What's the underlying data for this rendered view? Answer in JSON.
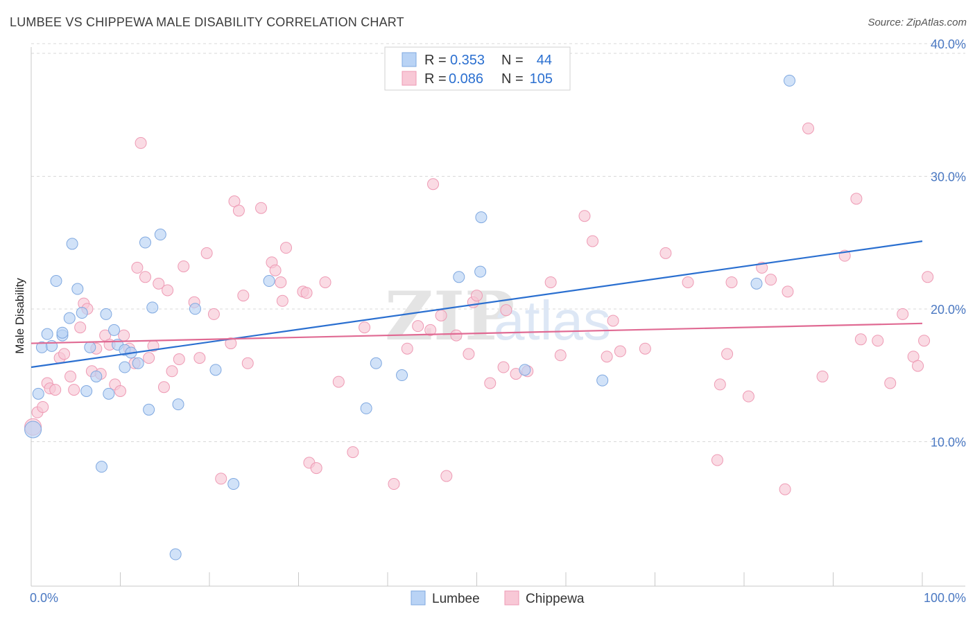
{
  "title": "LUMBEE VS CHIPPEWA MALE DISABILITY CORRELATION CHART",
  "source": "Source: ZipAtlas.com",
  "watermark": {
    "zip": "ZIP",
    "atlas": "atlas"
  },
  "colors": {
    "lumbee_fill": "#b9d3f5",
    "lumbee_stroke": "#7fa8e0",
    "lumbee_line": "#2a6fd0",
    "chippewa_fill": "#f8c8d6",
    "chippewa_stroke": "#ee9ab4",
    "chippewa_line": "#e06a93",
    "axis_label": "#4a78c2",
    "grid": "#d9d9d9"
  },
  "legend": {
    "rows": [
      {
        "r_label": "R =",
        "r_value": "0.353",
        "n_label": "N =",
        "n_value": "44"
      },
      {
        "r_label": "R =",
        "r_value": "0.086",
        "n_label": "N =",
        "n_value": "105"
      }
    ]
  },
  "bottom_legend": [
    "Lumbee",
    "Chippewa"
  ],
  "chart_data": {
    "type": "scatter",
    "title": "LUMBEE VS CHIPPEWA MALE DISABILITY CORRELATION CHART",
    "xlabel": "",
    "ylabel": "Male Disability",
    "xlim": [
      0,
      100
    ],
    "ylim": [
      0,
      40
    ],
    "x_tick_labels": [
      "0.0%",
      "100.0%"
    ],
    "y_ticks": [
      10,
      20,
      30,
      40
    ],
    "y_tick_labels": [
      "10.0%",
      "20.0%",
      "30.0%",
      "40.0%"
    ],
    "grid": "horizontal dashed",
    "legend_placement": "top-center",
    "series": [
      {
        "name": "Lumbee",
        "r": 0.353,
        "n": 44,
        "trend": {
          "x": [
            0,
            100
          ],
          "y": [
            16.5,
            26.0
          ]
        },
        "points": [
          [
            0.2,
            11.8
          ],
          [
            0.8,
            14.5
          ],
          [
            1.2,
            18.0
          ],
          [
            1.8,
            19.0
          ],
          [
            2.3,
            18.1
          ],
          [
            2.8,
            23.0
          ],
          [
            3.5,
            18.9
          ],
          [
            3.5,
            19.1
          ],
          [
            4.3,
            20.2
          ],
          [
            4.6,
            25.8
          ],
          [
            5.2,
            22.4
          ],
          [
            5.7,
            20.6
          ],
          [
            6.2,
            14.7
          ],
          [
            6.6,
            18.0
          ],
          [
            7.3,
            15.8
          ],
          [
            7.9,
            9.0
          ],
          [
            8.4,
            20.5
          ],
          [
            8.7,
            14.5
          ],
          [
            9.3,
            19.3
          ],
          [
            9.7,
            18.2
          ],
          [
            10.5,
            16.5
          ],
          [
            10.5,
            17.8
          ],
          [
            11.2,
            17.6
          ],
          [
            12.0,
            16.8
          ],
          [
            12.8,
            25.9
          ],
          [
            13.2,
            13.3
          ],
          [
            13.6,
            21.0
          ],
          [
            14.5,
            26.5
          ],
          [
            16.2,
            2.4
          ],
          [
            16.5,
            13.7
          ],
          [
            18.4,
            20.9
          ],
          [
            20.7,
            16.3
          ],
          [
            22.7,
            7.7
          ],
          [
            26.7,
            23.0
          ],
          [
            37.6,
            13.4
          ],
          [
            38.7,
            16.8
          ],
          [
            41.6,
            15.9
          ],
          [
            48.0,
            23.3
          ],
          [
            50.4,
            23.7
          ],
          [
            50.5,
            27.8
          ],
          [
            55.4,
            16.3
          ],
          [
            64.1,
            15.5
          ],
          [
            81.4,
            22.8
          ],
          [
            85.1,
            38.1
          ]
        ]
      },
      {
        "name": "Chippewa",
        "r": 0.086,
        "n": 105,
        "trend": {
          "x": [
            0,
            100
          ],
          "y": [
            18.3,
            19.8
          ]
        },
        "points": [
          [
            0.2,
            12.0
          ],
          [
            0.7,
            13.1
          ],
          [
            1.3,
            13.5
          ],
          [
            1.8,
            15.3
          ],
          [
            2.1,
            14.9
          ],
          [
            2.7,
            14.8
          ],
          [
            3.2,
            17.2
          ],
          [
            3.7,
            17.5
          ],
          [
            4.4,
            15.8
          ],
          [
            4.8,
            14.8
          ],
          [
            5.5,
            19.5
          ],
          [
            5.9,
            21.3
          ],
          [
            6.3,
            20.9
          ],
          [
            6.8,
            16.2
          ],
          [
            7.3,
            17.9
          ],
          [
            7.8,
            16.0
          ],
          [
            8.3,
            18.9
          ],
          [
            8.8,
            18.2
          ],
          [
            9.4,
            15.2
          ],
          [
            10.0,
            14.7
          ],
          [
            10.4,
            18.9
          ],
          [
            11.0,
            17.9
          ],
          [
            11.6,
            16.8
          ],
          [
            11.9,
            24.0
          ],
          [
            12.3,
            33.4
          ],
          [
            12.8,
            23.3
          ],
          [
            13.2,
            17.2
          ],
          [
            13.7,
            18.1
          ],
          [
            14.3,
            22.8
          ],
          [
            14.9,
            15.0
          ],
          [
            15.3,
            22.3
          ],
          [
            15.8,
            16.2
          ],
          [
            16.6,
            17.1
          ],
          [
            17.1,
            24.1
          ],
          [
            18.3,
            21.4
          ],
          [
            18.9,
            17.2
          ],
          [
            19.7,
            25.1
          ],
          [
            20.5,
            20.5
          ],
          [
            21.3,
            8.1
          ],
          [
            22.4,
            18.3
          ],
          [
            22.8,
            29.0
          ],
          [
            23.3,
            28.3
          ],
          [
            23.8,
            21.9
          ],
          [
            24.3,
            16.8
          ],
          [
            25.8,
            28.5
          ],
          [
            27.0,
            24.4
          ],
          [
            27.4,
            23.8
          ],
          [
            28.0,
            22.9
          ],
          [
            28.2,
            21.5
          ],
          [
            28.6,
            25.5
          ],
          [
            30.5,
            22.2
          ],
          [
            30.9,
            22.1
          ],
          [
            31.2,
            9.3
          ],
          [
            32.0,
            8.9
          ],
          [
            33.0,
            22.9
          ],
          [
            34.5,
            15.4
          ],
          [
            36.1,
            10.1
          ],
          [
            37.4,
            19.5
          ],
          [
            40.7,
            7.7
          ],
          [
            42.2,
            17.9
          ],
          [
            43.4,
            19.6
          ],
          [
            44.8,
            19.3
          ],
          [
            45.1,
            30.3
          ],
          [
            46.0,
            20.4
          ],
          [
            46.6,
            8.3
          ],
          [
            47.7,
            18.9
          ],
          [
            49.1,
            17.5
          ],
          [
            49.6,
            21.4
          ],
          [
            50.0,
            21.9
          ],
          [
            51.5,
            15.3
          ],
          [
            53.0,
            16.5
          ],
          [
            53.3,
            20.8
          ],
          [
            54.4,
            16.0
          ],
          [
            55.7,
            16.2
          ],
          [
            58.3,
            22.9
          ],
          [
            59.4,
            17.4
          ],
          [
            62.1,
            27.9
          ],
          [
            63.0,
            26.0
          ],
          [
            64.6,
            17.3
          ],
          [
            65.3,
            20.0
          ],
          [
            66.1,
            17.7
          ],
          [
            68.9,
            17.9
          ],
          [
            71.2,
            25.1
          ],
          [
            73.7,
            22.9
          ],
          [
            77.0,
            9.5
          ],
          [
            77.3,
            15.2
          ],
          [
            78.1,
            17.5
          ],
          [
            78.6,
            22.9
          ],
          [
            80.5,
            14.3
          ],
          [
            82.0,
            24.0
          ],
          [
            83.0,
            23.1
          ],
          [
            84.6,
            7.3
          ],
          [
            84.9,
            22.2
          ],
          [
            87.2,
            34.5
          ],
          [
            88.8,
            15.8
          ],
          [
            91.3,
            24.9
          ],
          [
            92.6,
            29.2
          ],
          [
            93.1,
            18.6
          ],
          [
            95.0,
            18.5
          ],
          [
            96.4,
            15.3
          ],
          [
            97.8,
            20.5
          ],
          [
            99.0,
            17.3
          ],
          [
            99.5,
            16.6
          ],
          [
            100.2,
            18.5
          ],
          [
            100.6,
            23.3
          ]
        ]
      }
    ]
  }
}
